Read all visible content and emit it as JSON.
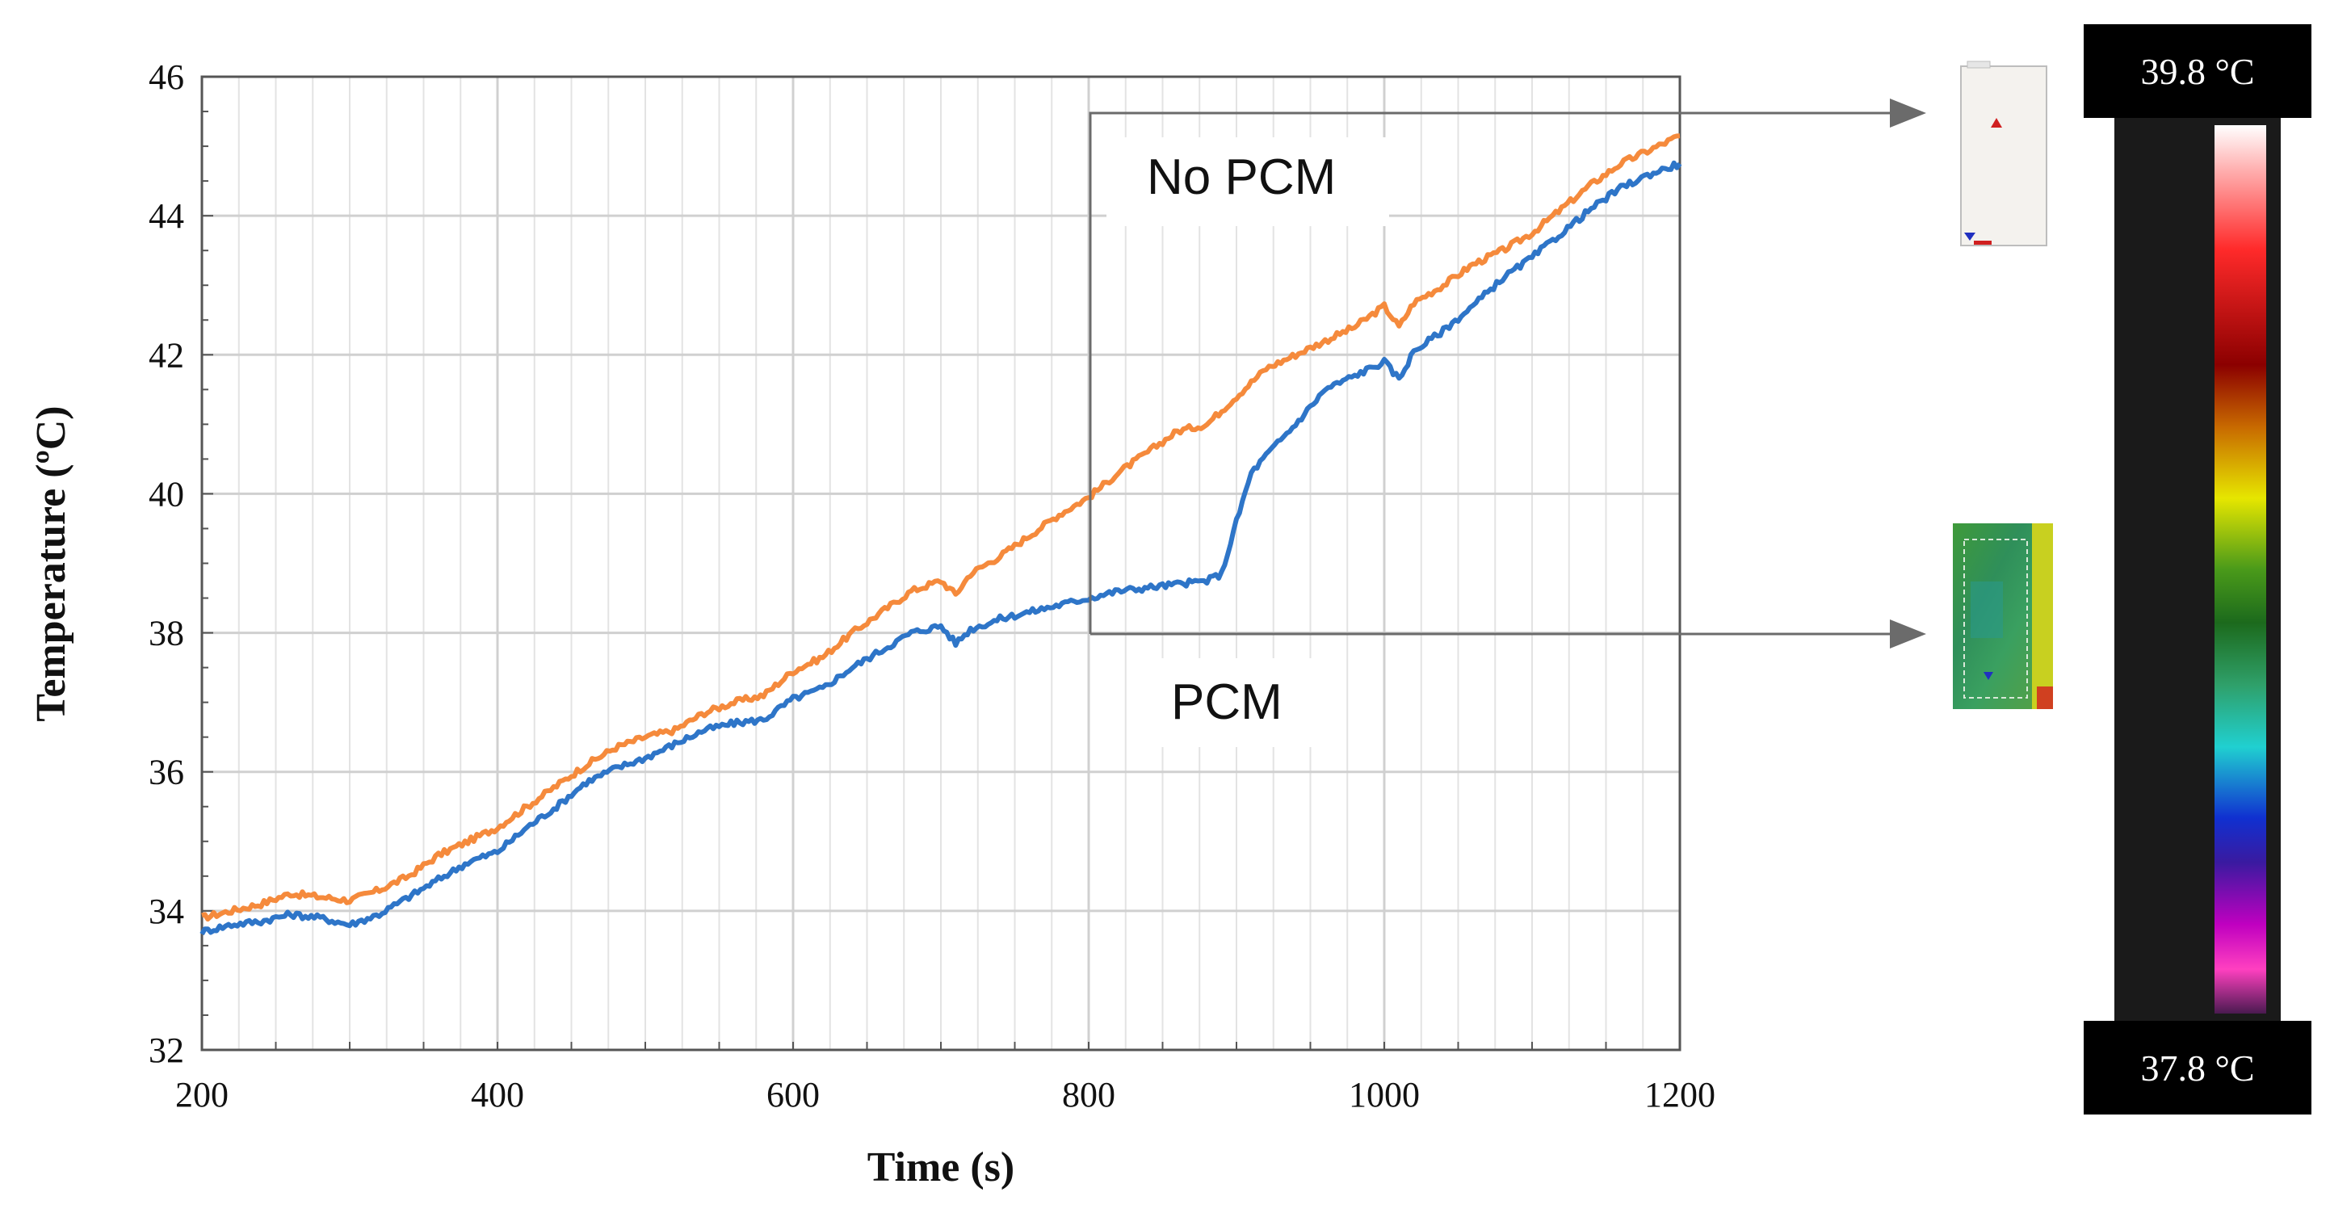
{
  "chart_data": {
    "type": "line",
    "title": "",
    "xlabel": "Time (s)",
    "ylabel": "Temperature (ºC)",
    "xlim": [
      200,
      1200
    ],
    "ylim": [
      32,
      46
    ],
    "x_ticks": [
      200,
      400,
      600,
      800,
      1000,
      1200
    ],
    "y_ticks": [
      32,
      34,
      36,
      38,
      40,
      42,
      44,
      46
    ],
    "grid": true,
    "series": [
      {
        "name": "No PCM",
        "color": "#F58A3C",
        "x": [
          200,
          220,
          240,
          260,
          280,
          300,
          320,
          340,
          360,
          380,
          400,
          420,
          440,
          460,
          480,
          500,
          520,
          540,
          560,
          580,
          600,
          620,
          640,
          660,
          680,
          700,
          710,
          720,
          740,
          760,
          780,
          800,
          820,
          840,
          860,
          880,
          900,
          920,
          940,
          960,
          980,
          1000,
          1010,
          1020,
          1040,
          1060,
          1080,
          1100,
          1120,
          1140,
          1160,
          1180,
          1200
        ],
        "y": [
          33.9,
          34.0,
          34.1,
          34.25,
          34.2,
          34.15,
          34.3,
          34.5,
          34.8,
          35.0,
          35.2,
          35.5,
          35.8,
          36.1,
          36.35,
          36.5,
          36.6,
          36.85,
          37.0,
          37.1,
          37.45,
          37.65,
          38.0,
          38.3,
          38.6,
          38.75,
          38.55,
          38.85,
          39.1,
          39.4,
          39.7,
          39.95,
          40.3,
          40.6,
          40.9,
          41.0,
          41.4,
          41.8,
          42.0,
          42.2,
          42.4,
          42.7,
          42.4,
          42.75,
          43.0,
          43.3,
          43.5,
          43.75,
          44.1,
          44.45,
          44.75,
          44.95,
          45.15
        ]
      },
      {
        "name": "PCM",
        "color": "#2E75C8",
        "x": [
          200,
          220,
          240,
          260,
          280,
          300,
          320,
          340,
          360,
          380,
          400,
          420,
          440,
          460,
          480,
          500,
          520,
          540,
          560,
          580,
          600,
          620,
          640,
          660,
          680,
          700,
          710,
          720,
          740,
          760,
          780,
          800,
          820,
          840,
          860,
          880,
          890,
          900,
          910,
          920,
          940,
          960,
          980,
          1000,
          1010,
          1020,
          1040,
          1060,
          1080,
          1100,
          1120,
          1140,
          1160,
          1180,
          1200
        ],
        "y": [
          33.7,
          33.8,
          33.85,
          33.95,
          33.9,
          33.8,
          33.95,
          34.2,
          34.45,
          34.7,
          34.85,
          35.2,
          35.5,
          35.85,
          36.05,
          36.2,
          36.4,
          36.6,
          36.7,
          36.75,
          37.05,
          37.2,
          37.5,
          37.75,
          38.0,
          38.1,
          37.85,
          38.05,
          38.2,
          38.3,
          38.4,
          38.5,
          38.6,
          38.65,
          38.7,
          38.75,
          38.85,
          39.6,
          40.3,
          40.55,
          41.0,
          41.5,
          41.7,
          41.9,
          41.65,
          42.05,
          42.35,
          42.7,
          43.1,
          43.4,
          43.75,
          44.1,
          44.4,
          44.6,
          44.75
        ]
      }
    ],
    "annotations": [
      "No PCM",
      "PCM"
    ],
    "colorbar": {
      "max_label": "39.8 °C",
      "min_label": "37.8 °C",
      "colors": [
        "#ffffff",
        "#ff2a2a",
        "#8b0000",
        "#c86a00",
        "#e6e600",
        "#1c7a1c",
        "#2fa06a",
        "#20d0d0",
        "#1030d0",
        "#3a1aa0",
        "#c000c0",
        "#ff40c0",
        "#f0a0e8",
        "#5a2060"
      ]
    }
  }
}
